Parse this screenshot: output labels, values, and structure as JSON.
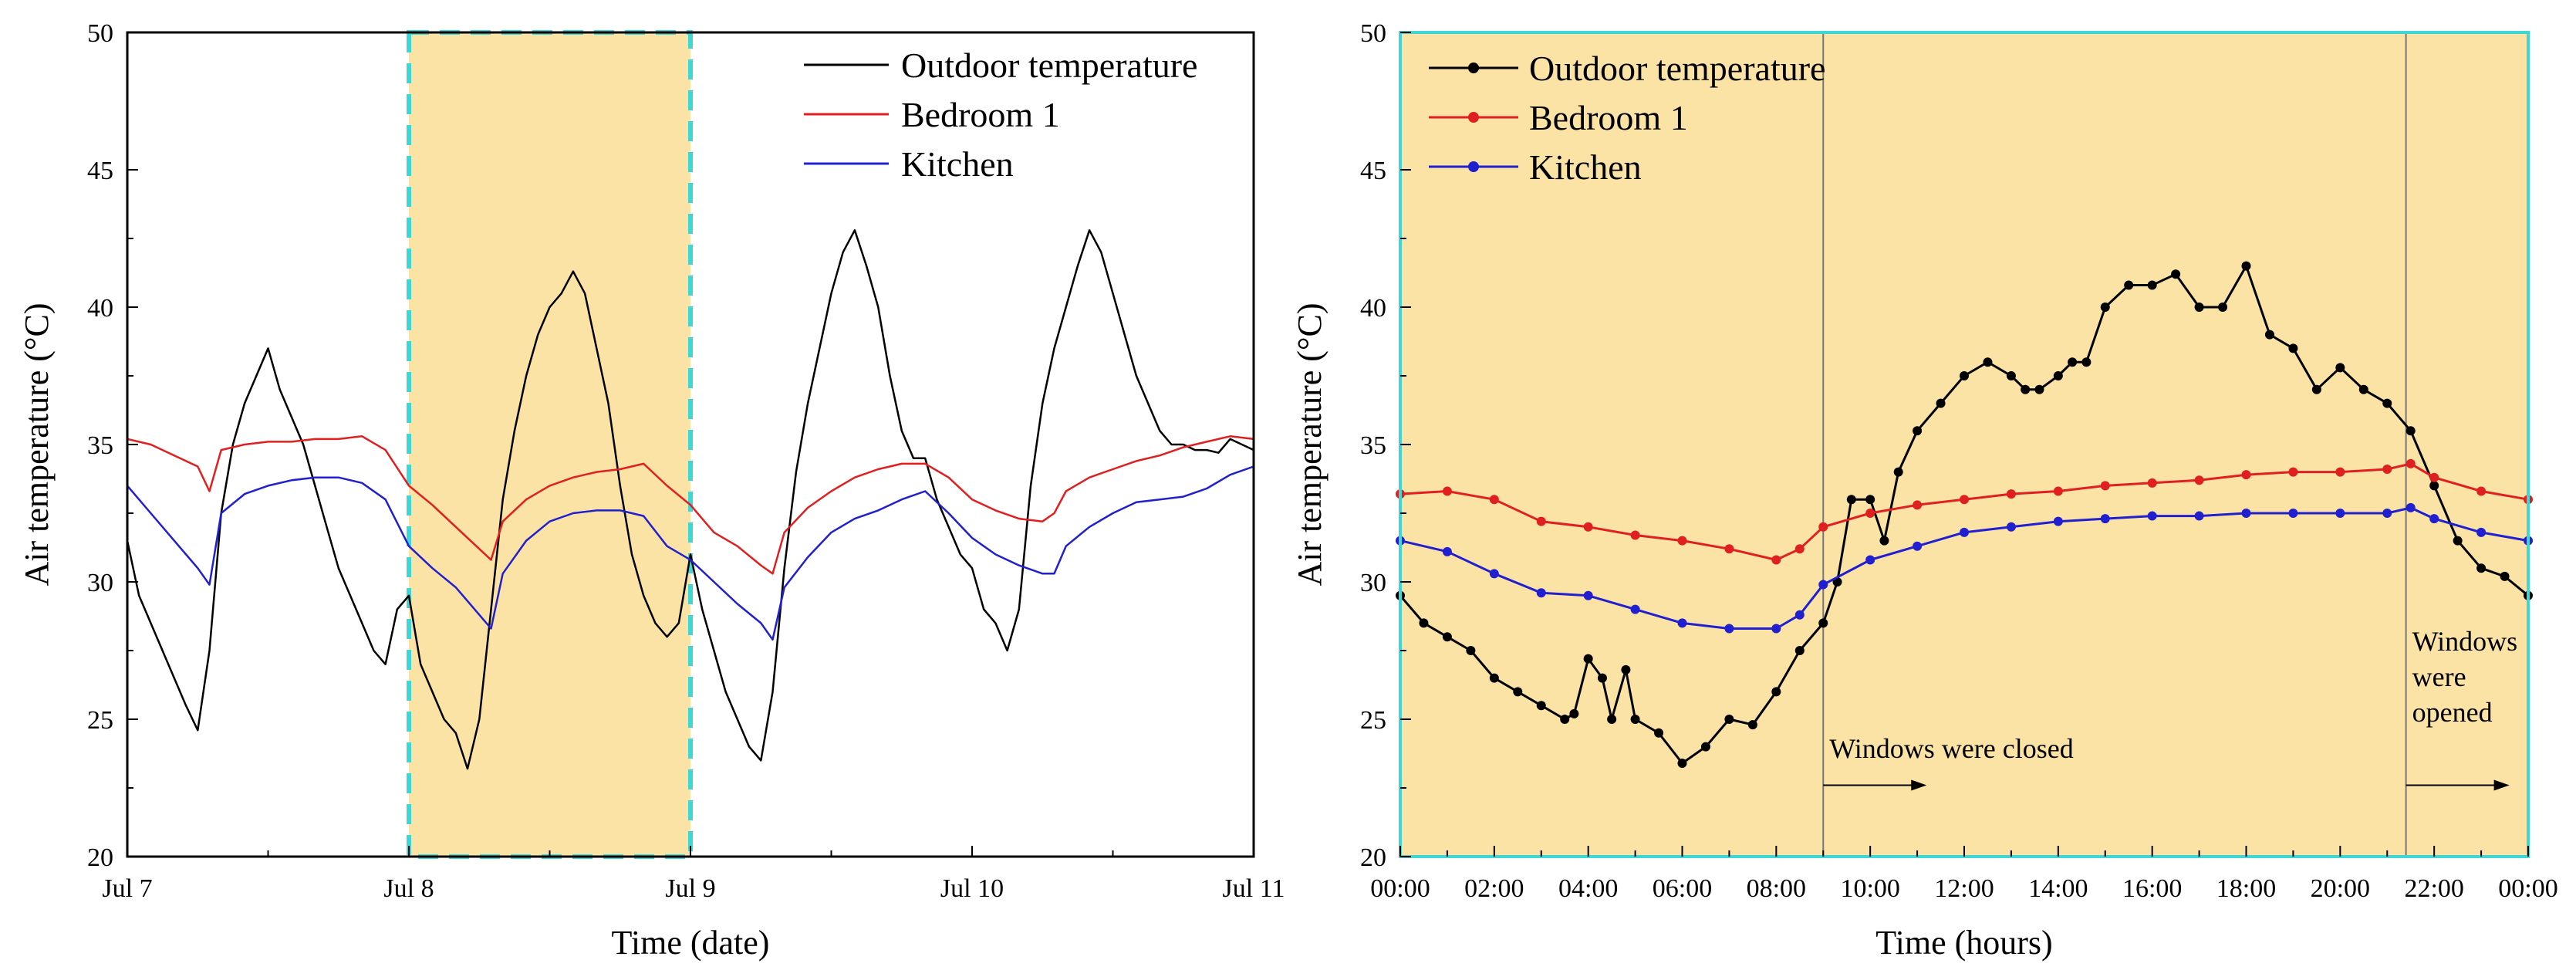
{
  "colors": {
    "outdoor": "#000000",
    "bedroom": "#e02020",
    "kitchen": "#2020d0",
    "highlight": "#fbe3a6",
    "highlight_border": "#3fd6d6",
    "marker_line": "#777777"
  },
  "chart_data": [
    {
      "type": "line",
      "title": "",
      "xlabel": "Time (date)",
      "ylabel": "Air temperature (°C)",
      "xlim": [
        0,
        96
      ],
      "ylim": [
        20,
        50
      ],
      "x_unit": "hours since Jul 7 00:00",
      "x_ticks": [
        {
          "x": 0,
          "label": "Jul 7"
        },
        {
          "x": 24,
          "label": "Jul 8"
        },
        {
          "x": 48,
          "label": "Jul 9"
        },
        {
          "x": 72,
          "label": "Jul 10"
        },
        {
          "x": 96,
          "label": "Jul 11"
        }
      ],
      "y_ticks": [
        20,
        25,
        30,
        35,
        40,
        45,
        50
      ],
      "highlight_range": [
        24,
        48
      ],
      "legend_position": "top-right",
      "series": [
        {
          "name": "Outdoor temperature",
          "color_key": "outdoor",
          "x": [
            0,
            1,
            2,
            3,
            4,
            5,
            6,
            7,
            8,
            9,
            10,
            11,
            12,
            13,
            14,
            15,
            16,
            17,
            18,
            19,
            20,
            21,
            22,
            23,
            24,
            25,
            26,
            27,
            28,
            29,
            30,
            31,
            32,
            33,
            34,
            35,
            36,
            37,
            38,
            39,
            40,
            41,
            42,
            43,
            44,
            45,
            46,
            47,
            48,
            49,
            50,
            51,
            52,
            53,
            54,
            55,
            56,
            57,
            58,
            59,
            60,
            61,
            62,
            63,
            64,
            65,
            66,
            67,
            68,
            69,
            70,
            71,
            72,
            73,
            74,
            75,
            76,
            77,
            78,
            79,
            80,
            81,
            82,
            83,
            84,
            85,
            86,
            87,
            88,
            89,
            90,
            91,
            92,
            93,
            94,
            95,
            96
          ],
          "values": [
            31.5,
            29.5,
            28.5,
            27.5,
            26.5,
            25.5,
            24.6,
            27.5,
            32.5,
            35.0,
            36.5,
            37.5,
            38.5,
            37.0,
            36.0,
            35.0,
            33.5,
            32.0,
            30.5,
            29.5,
            28.5,
            27.5,
            27.0,
            29.0,
            29.5,
            27.0,
            26.0,
            25.0,
            24.5,
            23.2,
            25.0,
            29.0,
            33.0,
            35.5,
            37.5,
            39.0,
            40.0,
            40.5,
            41.3,
            40.5,
            38.5,
            36.5,
            33.5,
            31.0,
            29.5,
            28.5,
            28.0,
            28.5,
            31.0,
            29.0,
            27.5,
            26.0,
            25.0,
            24.0,
            23.5,
            26.0,
            30.5,
            34.0,
            36.5,
            38.5,
            40.5,
            42.0,
            42.8,
            41.5,
            40.0,
            37.5,
            35.5,
            34.5,
            34.5,
            33.0,
            32.0,
            31.0,
            30.5,
            29.0,
            28.5,
            27.5,
            29.0,
            33.5,
            36.5,
            38.5,
            40.0,
            41.5,
            42.8,
            42.0,
            40.5,
            39.0,
            37.5,
            36.5,
            35.5,
            35.0,
            35.0,
            34.8,
            34.8,
            34.7,
            35.2,
            35.0,
            34.8
          ]
        },
        {
          "name": "Bedroom 1",
          "color_key": "bedroom",
          "x": [
            0,
            2,
            4,
            6,
            7,
            8,
            10,
            12,
            14,
            16,
            18,
            20,
            22,
            24,
            26,
            28,
            30,
            31,
            32,
            34,
            36,
            38,
            40,
            42,
            44,
            46,
            48,
            50,
            52,
            54,
            55,
            56,
            58,
            60,
            62,
            64,
            66,
            68,
            70,
            72,
            74,
            76,
            78,
            79,
            80,
            82,
            84,
            86,
            88,
            90,
            92,
            94,
            96
          ],
          "values": [
            35.2,
            35.0,
            34.6,
            34.2,
            33.3,
            34.8,
            35.0,
            35.1,
            35.1,
            35.2,
            35.2,
            35.3,
            34.8,
            33.5,
            32.8,
            32.0,
            31.2,
            30.8,
            32.2,
            33.0,
            33.5,
            33.8,
            34.0,
            34.1,
            34.3,
            33.5,
            32.8,
            31.8,
            31.3,
            30.6,
            30.3,
            31.8,
            32.7,
            33.3,
            33.8,
            34.1,
            34.3,
            34.3,
            33.8,
            33.0,
            32.6,
            32.3,
            32.2,
            32.5,
            33.3,
            33.8,
            34.1,
            34.4,
            34.6,
            34.9,
            35.1,
            35.3,
            35.2
          ]
        },
        {
          "name": "Kitchen",
          "color_key": "kitchen",
          "x": [
            0,
            2,
            4,
            6,
            7,
            8,
            10,
            12,
            14,
            16,
            18,
            20,
            22,
            24,
            26,
            28,
            30,
            31,
            32,
            34,
            36,
            38,
            40,
            42,
            44,
            46,
            48,
            50,
            52,
            54,
            55,
            56,
            58,
            60,
            62,
            64,
            66,
            68,
            70,
            72,
            74,
            76,
            78,
            79,
            80,
            82,
            84,
            86,
            88,
            90,
            92,
            94,
            96
          ],
          "values": [
            33.5,
            32.5,
            31.5,
            30.5,
            29.9,
            32.5,
            33.2,
            33.5,
            33.7,
            33.8,
            33.8,
            33.6,
            33.0,
            31.3,
            30.5,
            29.8,
            28.8,
            28.3,
            30.3,
            31.5,
            32.2,
            32.5,
            32.6,
            32.6,
            32.4,
            31.3,
            30.8,
            30.0,
            29.2,
            28.5,
            27.9,
            29.8,
            30.9,
            31.8,
            32.3,
            32.6,
            33.0,
            33.3,
            32.5,
            31.6,
            31.0,
            30.6,
            30.3,
            30.3,
            31.3,
            32.0,
            32.5,
            32.9,
            33.0,
            33.1,
            33.4,
            33.9,
            34.2
          ]
        }
      ]
    },
    {
      "type": "line",
      "title": "",
      "xlabel": "Time (hours)",
      "ylabel": "Air temperature (°C)",
      "xlim": [
        0,
        24
      ],
      "ylim": [
        20,
        50
      ],
      "x_unit": "hours",
      "x_ticks": [
        {
          "x": 0,
          "label": "00:00"
        },
        {
          "x": 2,
          "label": "02:00"
        },
        {
          "x": 4,
          "label": "04:00"
        },
        {
          "x": 6,
          "label": "06:00"
        },
        {
          "x": 8,
          "label": "08:00"
        },
        {
          "x": 10,
          "label": "10:00"
        },
        {
          "x": 12,
          "label": "12:00"
        },
        {
          "x": 14,
          "label": "14:00"
        },
        {
          "x": 16,
          "label": "16:00"
        },
        {
          "x": 18,
          "label": "18:00"
        },
        {
          "x": 20,
          "label": "20:00"
        },
        {
          "x": 22,
          "label": "22:00"
        },
        {
          "x": 24,
          "label": "00:00"
        }
      ],
      "y_ticks": [
        20,
        25,
        30,
        35,
        40,
        45,
        50
      ],
      "legend_position": "top-left",
      "markers": [
        {
          "x": 9.0,
          "text": "Windows were closed"
        },
        {
          "x": 21.4,
          "text": "Windows were opened"
        }
      ],
      "series": [
        {
          "name": "Outdoor temperature",
          "color_key": "outdoor",
          "x": [
            0,
            0.5,
            1,
            1.5,
            2,
            2.5,
            3,
            3.5,
            3.7,
            4,
            4.3,
            4.5,
            4.8,
            5,
            5.5,
            6,
            6.5,
            7,
            7.5,
            8,
            8.5,
            9,
            9.3,
            9.6,
            10,
            10.3,
            10.6,
            11,
            11.5,
            12,
            12.5,
            13,
            13.3,
            13.6,
            14,
            14.3,
            14.6,
            15,
            15.5,
            16,
            16.5,
            17,
            17.5,
            18,
            18.5,
            19,
            19.5,
            20,
            20.5,
            21,
            21.5,
            22,
            22.5,
            23,
            23.5,
            24
          ],
          "values": [
            29.5,
            28.5,
            28.0,
            27.5,
            26.5,
            26.0,
            25.5,
            25.0,
            25.2,
            27.2,
            26.5,
            25.0,
            26.8,
            25.0,
            24.5,
            23.4,
            24.0,
            25.0,
            24.8,
            26.0,
            27.5,
            28.5,
            30.0,
            33.0,
            33.0,
            31.5,
            34.0,
            35.5,
            36.5,
            37.5,
            38.0,
            37.5,
            37.0,
            37.0,
            37.5,
            38.0,
            38.0,
            40.0,
            40.8,
            40.8,
            41.2,
            40.0,
            40.0,
            41.5,
            39.0,
            38.5,
            37.0,
            37.8,
            37.0,
            36.5,
            35.5,
            33.5,
            31.5,
            30.5,
            30.2,
            29.5
          ]
        },
        {
          "name": "Bedroom 1",
          "color_key": "bedroom",
          "x": [
            0,
            1,
            2,
            3,
            4,
            5,
            6,
            7,
            8,
            8.5,
            9,
            10,
            11,
            12,
            13,
            14,
            15,
            16,
            17,
            18,
            19,
            20,
            21,
            21.5,
            22,
            23,
            24
          ],
          "values": [
            33.2,
            33.3,
            33.0,
            32.2,
            32.0,
            31.7,
            31.5,
            31.2,
            30.8,
            31.2,
            32.0,
            32.5,
            32.8,
            33.0,
            33.2,
            33.3,
            33.5,
            33.6,
            33.7,
            33.9,
            34.0,
            34.0,
            34.1,
            34.3,
            33.8,
            33.3,
            33.0
          ]
        },
        {
          "name": "Kitchen",
          "color_key": "kitchen",
          "x": [
            0,
            1,
            2,
            3,
            4,
            5,
            6,
            7,
            8,
            8.5,
            9,
            10,
            11,
            12,
            13,
            14,
            15,
            16,
            17,
            18,
            19,
            20,
            21,
            21.5,
            22,
            23,
            24
          ],
          "values": [
            31.5,
            31.1,
            30.3,
            29.6,
            29.5,
            29.0,
            28.5,
            28.3,
            28.3,
            28.8,
            29.9,
            30.8,
            31.3,
            31.8,
            32.0,
            32.2,
            32.3,
            32.4,
            32.4,
            32.5,
            32.5,
            32.5,
            32.5,
            32.7,
            32.3,
            31.8,
            31.5
          ]
        }
      ]
    }
  ]
}
